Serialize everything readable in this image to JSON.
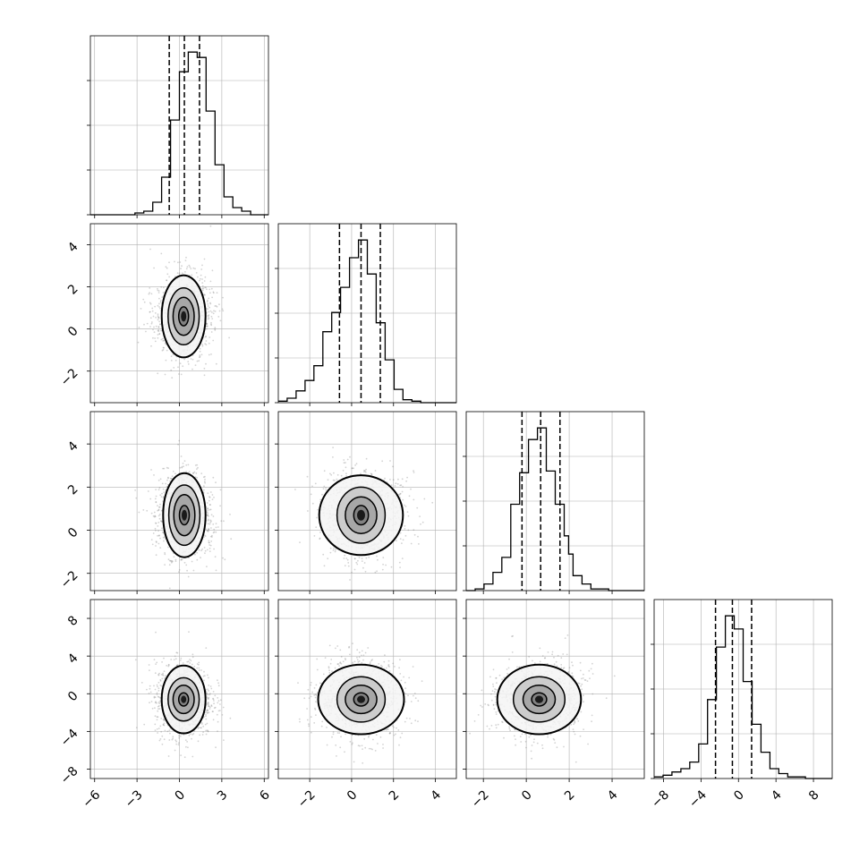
{
  "chart_data": {
    "type": "corner",
    "title": "",
    "n_params": 4,
    "grid": true,
    "colors": {
      "line": "#000000",
      "grid": "#b0b0b0",
      "points": "#808080"
    },
    "params": [
      {
        "index": 0,
        "ticks": [
          -6,
          -3,
          0,
          3,
          6
        ],
        "tick_labels": [
          "−6",
          "−3",
          "0",
          "3",
          "6"
        ],
        "range": [
          -6.3,
          6.3
        ]
      },
      {
        "index": 1,
        "ticks": [
          -2,
          0,
          2,
          4
        ],
        "tick_labels": [
          "−2",
          "0",
          "2",
          "4"
        ],
        "range": [
          -3.5,
          5.0
        ]
      },
      {
        "index": 2,
        "ticks": [
          -2,
          0,
          2,
          4
        ],
        "tick_labels": [
          "−2",
          "0",
          "2",
          "4"
        ],
        "range": [
          -2.8,
          5.5
        ]
      },
      {
        "index": 3,
        "ticks": [
          -8,
          -4,
          0,
          4,
          8
        ],
        "tick_labels": [
          "−8",
          "−4",
          "0",
          "4",
          "8"
        ],
        "range": [
          -9.0,
          10.0
        ]
      }
    ],
    "histograms": [
      {
        "param": 0,
        "bin_edges": [
          -6.3,
          -5.67,
          -5.04,
          -4.41,
          -3.78,
          -3.15,
          -2.52,
          -1.89,
          -1.26,
          -0.63,
          0.0,
          0.63,
          1.26,
          1.89,
          2.52,
          3.15,
          3.78,
          4.41,
          5.04,
          5.67,
          6.3
        ],
        "counts": [
          0,
          0,
          0,
          0,
          0,
          1,
          2,
          7,
          21,
          53,
          80,
          91,
          88,
          58,
          28,
          10,
          4,
          2,
          0,
          0
        ],
        "quantiles": [
          -0.72,
          0.35,
          1.42
        ]
      },
      {
        "param": 1,
        "bin_edges": [
          -3.5,
          -3.075,
          -2.65,
          -2.225,
          -1.8,
          -1.375,
          -0.95,
          -0.525,
          -0.1,
          0.325,
          0.75,
          1.175,
          1.6,
          2.025,
          2.45,
          2.875,
          3.3,
          3.725,
          4.15,
          4.575,
          5.0
        ],
        "counts": [
          1,
          3,
          8,
          15,
          25,
          48,
          61,
          78,
          98,
          110,
          87,
          54,
          29,
          9,
          2,
          1,
          0,
          0,
          0,
          0
        ],
        "quantiles": [
          -0.58,
          0.45,
          1.37
        ]
      },
      {
        "param": 2,
        "bin_edges": [
          -2.8,
          -2.385,
          -1.97,
          -1.555,
          -1.14,
          -0.725,
          -0.31,
          0.105,
          0.52,
          0.935,
          1.35,
          1.765,
          1.97,
          2.18,
          2.595,
          3.01,
          3.425,
          3.84,
          4.255,
          4.67,
          5.085,
          5.5
        ],
        "counts": [
          0,
          1,
          4,
          11,
          20,
          52,
          71,
          91,
          98,
          72,
          52,
          33,
          22,
          9,
          4,
          1,
          1,
          0,
          0,
          0,
          0
        ],
        "quantiles": [
          -0.2,
          0.67,
          1.57
        ]
      },
      {
        "param": 3,
        "bin_edges": [
          -9.0,
          -8.05,
          -7.1,
          -6.15,
          -5.2,
          -4.25,
          -3.3,
          -2.35,
          -1.4,
          -0.45,
          0.5,
          1.45,
          2.4,
          3.35,
          4.3,
          5.25,
          6.2,
          7.15,
          8.1,
          9.05,
          10.0
        ],
        "counts": [
          1,
          2,
          4,
          6,
          10,
          21,
          48,
          80,
          99,
          91,
          59,
          33,
          16,
          6,
          3,
          1,
          1,
          0,
          0,
          0
        ],
        "quantiles": [
          -2.45,
          -0.65,
          1.4
        ]
      }
    ],
    "scatter_panels": [
      {
        "row": 1,
        "col": 0,
        "center": [
          0.3,
          0.6
        ],
        "sigma": [
          1.0,
          1.0
        ],
        "contour_half_widths": [
          [
            0.35,
            0.45
          ],
          [
            0.75,
            0.9
          ],
          [
            1.1,
            1.35
          ],
          [
            1.55,
            1.95
          ]
        ]
      },
      {
        "row": 2,
        "col": 0,
        "center": [
          0.35,
          0.7
        ],
        "sigma": [
          1.0,
          1.0
        ],
        "contour_half_widths": [
          [
            0.35,
            0.45
          ],
          [
            0.75,
            0.95
          ],
          [
            1.1,
            1.4
          ],
          [
            1.5,
            1.95
          ]
        ]
      },
      {
        "row": 2,
        "col": 1,
        "center": [
          0.45,
          0.7
        ],
        "sigma": [
          1.0,
          1.0
        ],
        "contour_half_widths": [
          [
            0.35,
            0.45
          ],
          [
            0.75,
            0.85
          ],
          [
            1.15,
            1.3
          ],
          [
            2.0,
            1.85
          ]
        ]
      },
      {
        "row": 3,
        "col": 0,
        "center": [
          0.3,
          -0.6
        ],
        "sigma": [
          1.0,
          2.0
        ],
        "contour_half_widths": [
          [
            0.35,
            0.7
          ],
          [
            0.75,
            1.5
          ],
          [
            1.1,
            2.3
          ],
          [
            1.55,
            3.6
          ]
        ]
      },
      {
        "row": 3,
        "col": 1,
        "center": [
          0.45,
          -0.6
        ],
        "sigma": [
          1.0,
          2.0
        ],
        "contour_half_widths": [
          [
            0.35,
            0.7
          ],
          [
            0.75,
            1.5
          ],
          [
            1.15,
            2.4
          ],
          [
            2.05,
            3.7
          ]
        ]
      },
      {
        "row": 3,
        "col": 2,
        "center": [
          0.6,
          -0.6
        ],
        "sigma": [
          1.0,
          2.0
        ],
        "contour_half_widths": [
          [
            0.35,
            0.7
          ],
          [
            0.75,
            1.5
          ],
          [
            1.2,
            2.4
          ],
          [
            1.95,
            3.7
          ]
        ]
      }
    ]
  }
}
